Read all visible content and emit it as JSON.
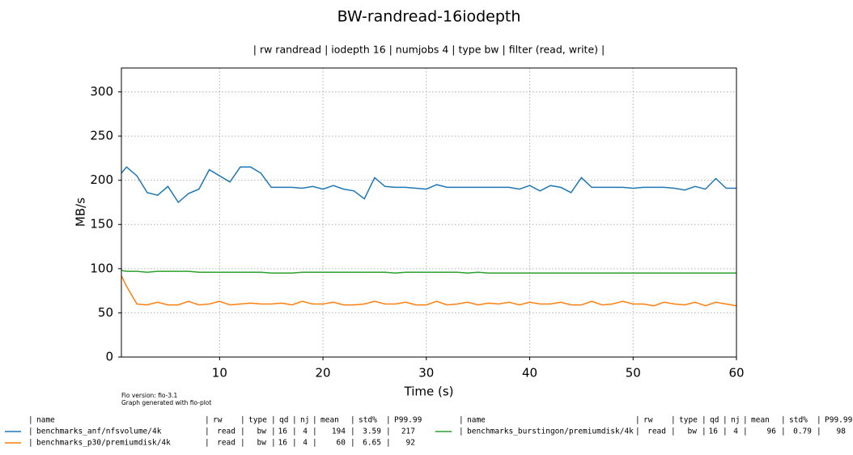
{
  "chart_data": {
    "type": "line",
    "title": "BW-randread-16iodepth",
    "subtitle": "| rw randread | iodepth 16 | numjobs 4 | type bw | filter (read, write) |",
    "x_label": "Time (s)",
    "y_label": "MB/s",
    "notes": [
      "Fio version: fio-3.1",
      "Graph generated with fio-plot"
    ],
    "xlim": [
      0.5,
      60
    ],
    "ylim": [
      0,
      327
    ],
    "xticks": [
      10,
      20,
      30,
      40,
      50,
      60
    ],
    "yticks": [
      0,
      50,
      100,
      150,
      200,
      250,
      300
    ],
    "grid": true,
    "x": [
      0.5,
      1,
      2,
      3,
      4,
      5,
      6,
      7,
      8,
      9,
      10,
      11,
      12,
      13,
      14,
      15,
      16,
      17,
      18,
      19,
      20,
      21,
      22,
      23,
      24,
      25,
      26,
      27,
      28,
      29,
      30,
      31,
      32,
      33,
      34,
      35,
      36,
      37,
      38,
      39,
      40,
      41,
      42,
      43,
      44,
      45,
      46,
      47,
      48,
      49,
      50,
      51,
      52,
      53,
      54,
      55,
      56,
      57,
      58,
      59,
      60
    ],
    "table_columns": [
      "name",
      "rw",
      "type",
      "qd",
      "nj",
      "mean",
      "std%",
      "P99.99"
    ],
    "series": [
      {
        "name": "benchmarks_anf/nfsvolume/4k",
        "color": "#1f77b4",
        "stats": [
          "read",
          "bw",
          16,
          4,
          194,
          3.59,
          217
        ],
        "values": [
          208,
          215,
          205,
          186,
          183,
          193,
          175,
          185,
          190,
          212,
          205,
          198,
          215,
          215,
          208,
          192,
          192,
          192,
          191,
          193,
          190,
          194,
          190,
          188,
          179,
          203,
          193,
          192,
          192,
          191,
          190,
          195,
          192,
          192,
          192,
          192,
          192,
          192,
          192,
          190,
          194,
          188,
          194,
          192,
          186,
          203,
          192,
          192,
          192,
          192,
          191,
          192,
          192,
          192,
          191,
          189,
          193,
          190,
          202,
          191,
          191
        ]
      },
      {
        "name": "benchmarks_p30/premiumdisk/4k",
        "color": "#ff7f0e",
        "stats": [
          "read",
          "bw",
          16,
          4,
          60,
          6.65,
          92
        ],
        "values": [
          92,
          80,
          60,
          59,
          62,
          59,
          59,
          63,
          59,
          60,
          63,
          59,
          60,
          61,
          60,
          60,
          61,
          59,
          63,
          60,
          60,
          62,
          59,
          59,
          60,
          63,
          60,
          60,
          62,
          59,
          59,
          63,
          59,
          60,
          62,
          59,
          61,
          60,
          62,
          59,
          62,
          60,
          60,
          62,
          59,
          59,
          63,
          59,
          60,
          63,
          60,
          60,
          58,
          62,
          60,
          59,
          62,
          58,
          62,
          60,
          58
        ]
      },
      {
        "name": "benchmarks_burstingon/premiumdisk/4k",
        "color": "#2ca02c",
        "stats": [
          "read",
          "bw",
          16,
          4,
          96,
          0.79,
          98
        ],
        "values": [
          98,
          97,
          97,
          96,
          97,
          97,
          97,
          97,
          96,
          96,
          96,
          96,
          96,
          96,
          96,
          95,
          95,
          95,
          96,
          96,
          96,
          96,
          96,
          96,
          96,
          96,
          96,
          95,
          96,
          96,
          96,
          96,
          96,
          96,
          95,
          96,
          95,
          95,
          95,
          95,
          95,
          95,
          95,
          95,
          95,
          95,
          95,
          95,
          95,
          95,
          95,
          95,
          95,
          95,
          95,
          95,
          95,
          95,
          95,
          95,
          95
        ]
      }
    ]
  }
}
